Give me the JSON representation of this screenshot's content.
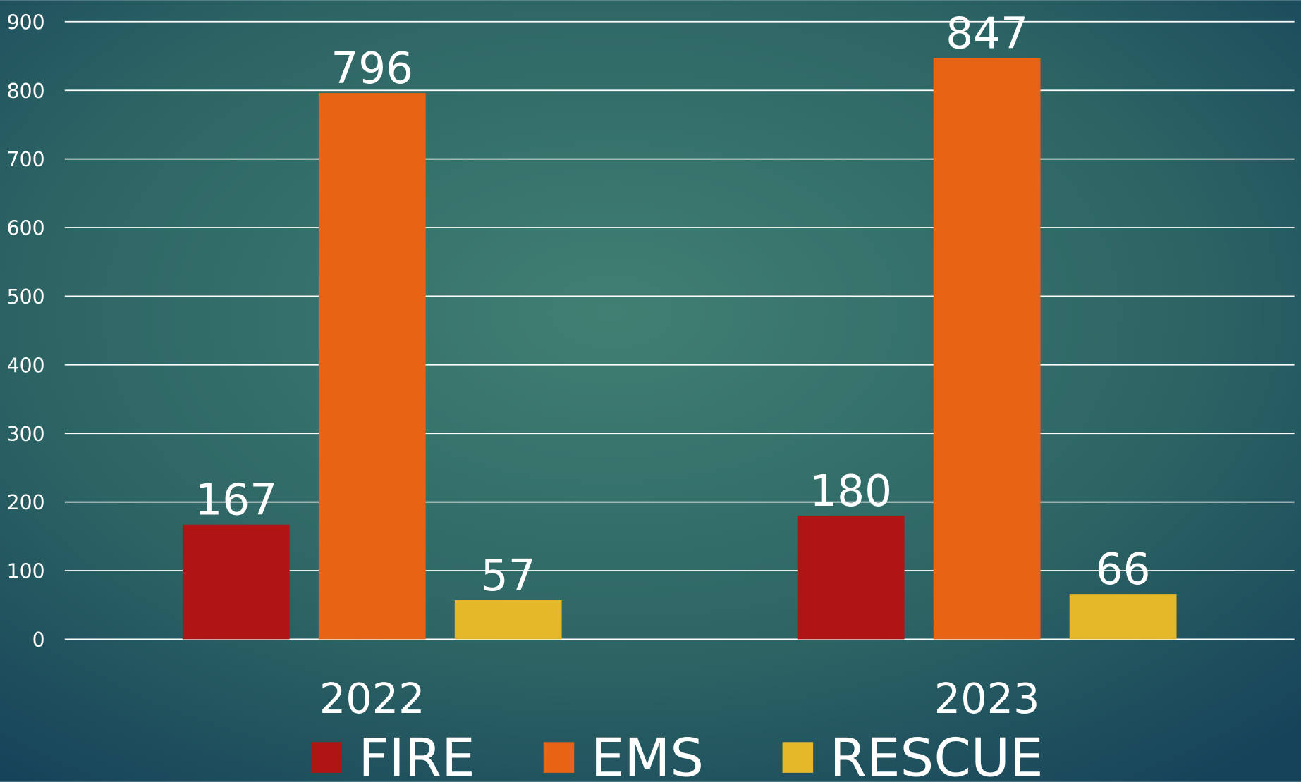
{
  "chart_data": {
    "type": "bar",
    "categories": [
      "2022",
      "2023"
    ],
    "series": [
      {
        "name": "FIRE",
        "color": "#b01515",
        "values": [
          167,
          180
        ]
      },
      {
        "name": "EMS",
        "color": "#e86414",
        "values": [
          796,
          847
        ]
      },
      {
        "name": "RESCUE",
        "color": "#e5b82a",
        "values": [
          57,
          66
        ]
      }
    ],
    "ylim": [
      0,
      900
    ],
    "yticks": [
      0,
      100,
      200,
      300,
      400,
      500,
      600,
      700,
      800,
      900
    ],
    "grid": true,
    "legend": "bottom"
  }
}
